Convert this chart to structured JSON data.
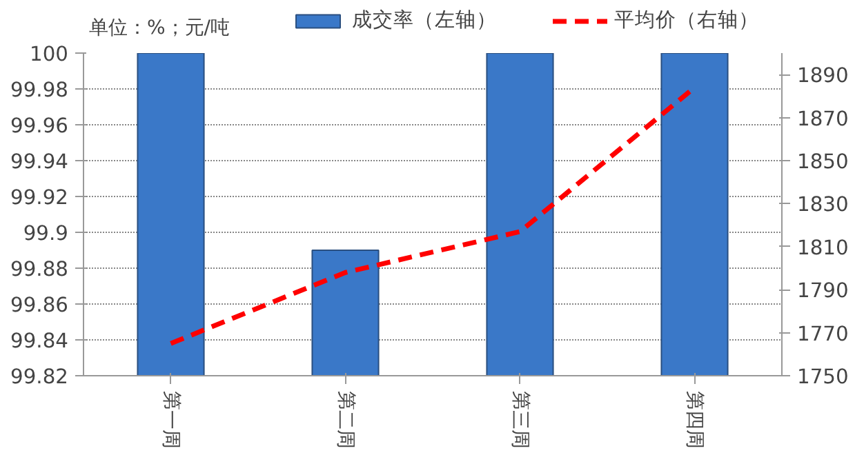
{
  "chart_data": {
    "type": "bar",
    "annotations": [
      "单位：%；元/吨"
    ],
    "categories": [
      "第一周",
      "第二周",
      "第三周",
      "第四周"
    ],
    "series": [
      {
        "name": "成交率（左轴）",
        "color": "#3a78c8",
        "values": [
          100,
          99.89,
          100,
          100
        ]
      },
      {
        "name": "平均价（右轴）",
        "type": "line",
        "axis": "y2",
        "color": "#ff0000",
        "line_style": "dashed",
        "values": [
          1765,
          1798,
          1817,
          1884
        ]
      }
    ],
    "ylim": [
      99.82,
      100
    ],
    "yticks": [
      99.82,
      99.84,
      99.86,
      99.88,
      99.9,
      99.92,
      99.94,
      99.96,
      99.98,
      100
    ],
    "y2lim": [
      1750,
      1900
    ],
    "y2ticks": [
      1750,
      1770,
      1790,
      1810,
      1830,
      1850,
      1870,
      1890
    ],
    "grid": "y",
    "legend": "top"
  }
}
